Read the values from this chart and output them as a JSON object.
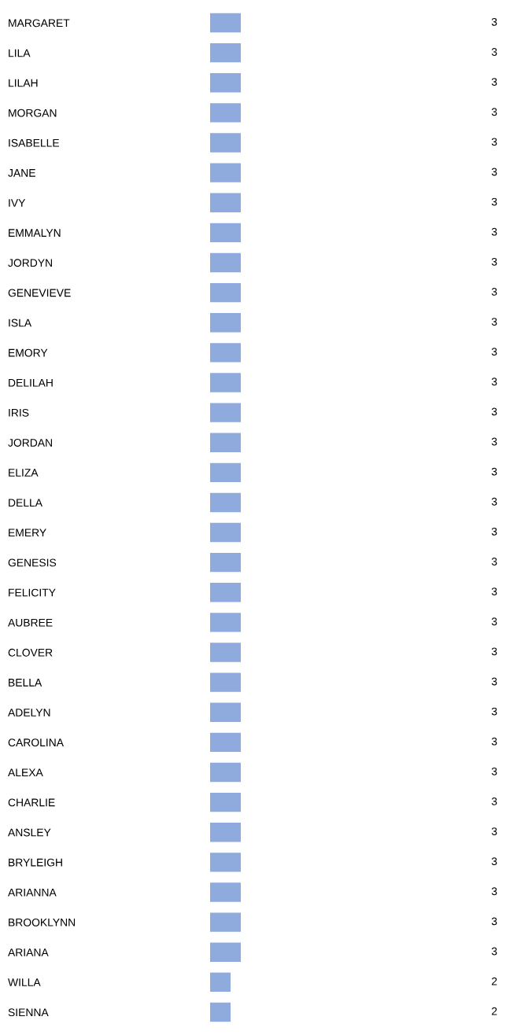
{
  "chart_data": {
    "type": "bar",
    "orientation": "horizontal",
    "data_labels": true,
    "grid": false,
    "legend": false,
    "tick_labels": "y",
    "color": "#8faadc",
    "categories": [
      "MARGARET",
      "LILA",
      "LILAH",
      "MORGAN",
      "ISABELLE",
      "JANE",
      "IVY",
      "EMMALYN",
      "JORDYN",
      "GENEVIEVE",
      "ISLA",
      "EMORY",
      "DELILAH",
      "IRIS",
      "JORDAN",
      "ELIZA",
      "DELLA",
      "EMERY",
      "GENESIS",
      "FELICITY",
      "AUBREE",
      "CLOVER",
      "BELLA",
      "ADELYN",
      "CAROLINA",
      "ALEXA",
      "CHARLIE",
      "ANSLEY",
      "BRYLEIGH",
      "ARIANNA",
      "BROOKLYNN",
      "ARIANA",
      "WILLA",
      "SIENNA"
    ],
    "values": [
      3,
      3,
      3,
      3,
      3,
      3,
      3,
      3,
      3,
      3,
      3,
      3,
      3,
      3,
      3,
      3,
      3,
      3,
      3,
      3,
      3,
      3,
      3,
      3,
      3,
      3,
      3,
      3,
      3,
      3,
      3,
      3,
      2,
      2
    ]
  }
}
